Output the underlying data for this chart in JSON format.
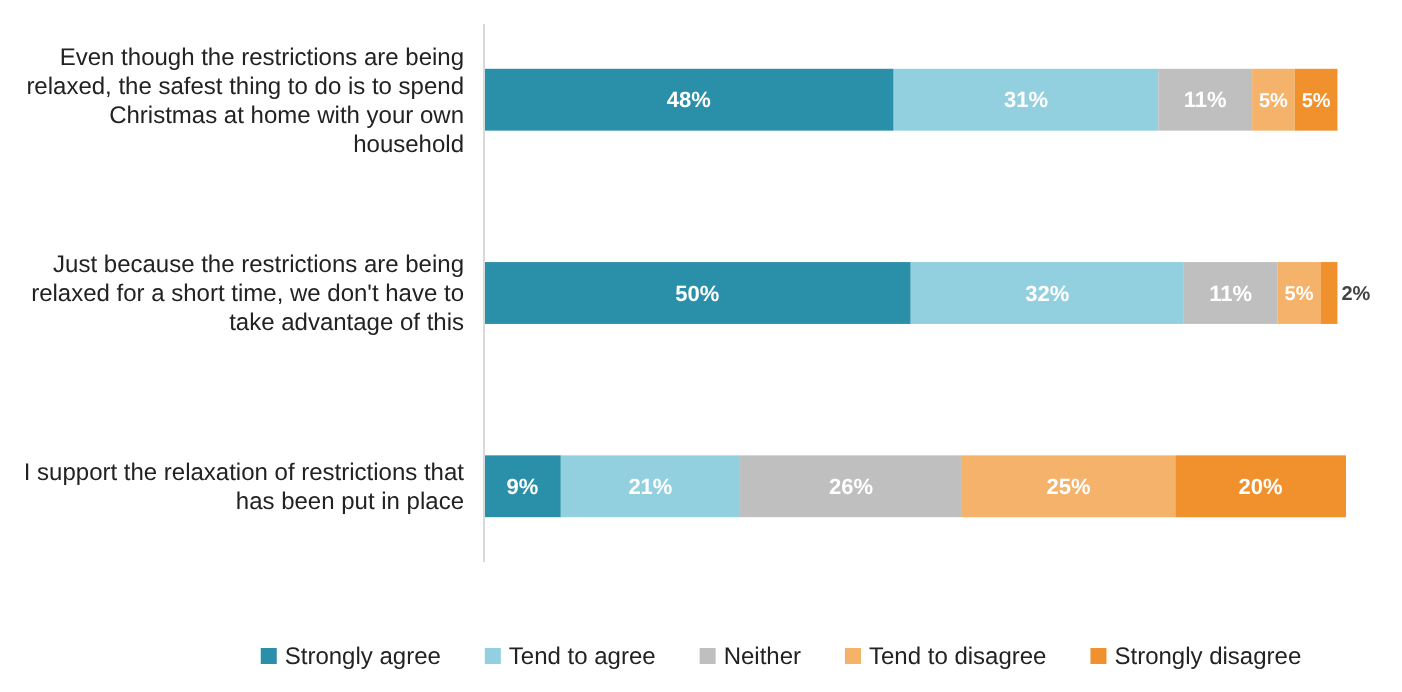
{
  "chart_data": {
    "type": "bar",
    "orientation": "horizontal",
    "stacked": true,
    "categories": [
      "Even though the restrictions are being relaxed, the safest thing to do is to spend Christmas at home with your own household",
      "Just because the restrictions are being relaxed for a short time, we don't have to take advantage of this",
      "I support the relaxation of restrictions that has been put in place"
    ],
    "series": [
      {
        "name": "Strongly agree",
        "color": "#2a8fa8",
        "values": [
          48,
          50,
          9
        ],
        "value_labels": [
          "48%",
          "50%",
          "9%"
        ]
      },
      {
        "name": "Tend to agree",
        "color": "#92d0e0",
        "values": [
          31,
          32,
          21
        ],
        "value_labels": [
          "31%",
          "32%",
          "21%"
        ]
      },
      {
        "name": "Neither",
        "color": "#bfbfbf",
        "values": [
          11,
          11,
          26
        ],
        "value_labels": [
          "11%",
          "11%",
          "26%"
        ]
      },
      {
        "name": "Tend to disagree",
        "color": "#f5b26a",
        "values": [
          5,
          5,
          25
        ],
        "value_labels": [
          "5%",
          "5%",
          "25%"
        ]
      },
      {
        "name": "Strongly disagree",
        "color": "#f0912e",
        "values": [
          5,
          2,
          20
        ],
        "value_labels": [
          "5%",
          "2%",
          "20%"
        ]
      }
    ],
    "tick_labels": "y",
    "legend": "bottom"
  }
}
